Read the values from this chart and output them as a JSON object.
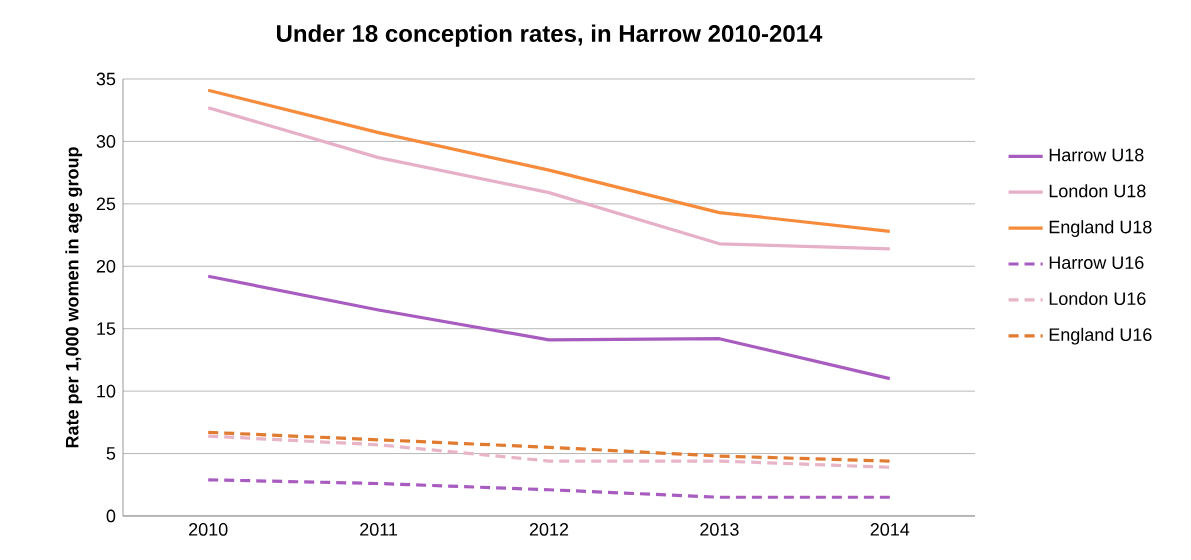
{
  "chart_data": {
    "type": "line",
    "title": "Under 18 conception rates, in Harrow 2010-2014",
    "ylabel": "Rate per 1,000 women in age group",
    "categories": [
      "2010",
      "2011",
      "2012",
      "2013",
      "2014"
    ],
    "ylim": [
      0,
      35
    ],
    "yticks": [
      0,
      5,
      10,
      15,
      20,
      25,
      30,
      35
    ],
    "grid": "y",
    "legend": "right",
    "series": [
      {
        "name": "Harrow  U18",
        "color": "#a95cc0",
        "line_style": "solid",
        "values": [
          19.2,
          16.5,
          14.1,
          14.2,
          11.0
        ]
      },
      {
        "name": "London U18",
        "color": "#e6b0c8",
        "line_style": "solid",
        "values": [
          32.7,
          28.7,
          25.9,
          21.8,
          21.4
        ]
      },
      {
        "name": "England U18",
        "color": "#f68b3c",
        "line_style": "solid",
        "values": [
          34.1,
          30.7,
          27.7,
          24.3,
          22.8
        ]
      },
      {
        "name": "Harrow U16",
        "color": "#a95cc0",
        "line_style": "dashed",
        "values": [
          2.9,
          2.6,
          2.1,
          1.5,
          1.5
        ]
      },
      {
        "name": "London U16",
        "color": "#e8b4c8",
        "line_style": "dashed",
        "values": [
          6.4,
          5.7,
          4.4,
          4.4,
          3.9
        ]
      },
      {
        "name": "England U16",
        "color": "#e07b30",
        "line_style": "dashed",
        "values": [
          6.7,
          6.1,
          5.5,
          4.8,
          4.4
        ]
      }
    ]
  }
}
